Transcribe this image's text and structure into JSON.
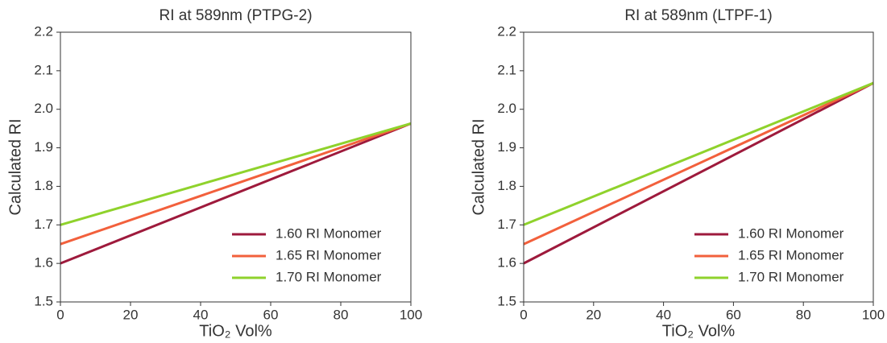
{
  "chart_data": [
    {
      "type": "line",
      "title": "RI at 589nm (PTPG-2)",
      "x_label": "TiO₂ Vol%",
      "y_label": "Calculated RI",
      "x": [
        0,
        100
      ],
      "xlim": [
        0,
        100
      ],
      "xticks": [
        0,
        20,
        40,
        60,
        80,
        100
      ],
      "ylim": [
        1.5,
        2.2
      ],
      "yticks": [
        1.5,
        1.6,
        1.7,
        1.8,
        1.9,
        {
          "value": 2.0,
          "label": "2.0"
        },
        2.1,
        2.2
      ],
      "legend": "lower right",
      "grid": false,
      "series": [
        {
          "name": "1.60 RI Monomer",
          "color": "#9e1a3c",
          "values": [
            1.6,
            1.963
          ]
        },
        {
          "name": "1.65 RI Monomer",
          "color": "#f2603c",
          "values": [
            1.65,
            1.963
          ]
        },
        {
          "name": "1.70 RI Monomer",
          "color": "#8fd22c",
          "values": [
            1.7,
            1.963
          ]
        }
      ]
    },
    {
      "type": "line",
      "title": "RI at 589nm (LTPF-1)",
      "x_label": "TiO₂ Vol%",
      "y_label": "Calculated RI",
      "x": [
        0,
        100
      ],
      "xlim": [
        0,
        100
      ],
      "xticks": [
        0,
        20,
        40,
        60,
        80,
        100
      ],
      "ylim": [
        1.5,
        2.2
      ],
      "yticks": [
        1.5,
        1.6,
        1.7,
        1.8,
        1.9,
        {
          "value": 2.0,
          "label": "2.0"
        },
        2.1,
        2.2
      ],
      "legend": "lower right",
      "grid": false,
      "series": [
        {
          "name": "1.60 RI Monomer",
          "color": "#9e1a3c",
          "values": [
            1.6,
            2.068
          ]
        },
        {
          "name": "1.65 RI Monomer",
          "color": "#f2603c",
          "values": [
            1.65,
            2.068
          ]
        },
        {
          "name": "1.70 RI Monomer",
          "color": "#8fd22c",
          "values": [
            1.7,
            2.068
          ]
        }
      ]
    }
  ]
}
